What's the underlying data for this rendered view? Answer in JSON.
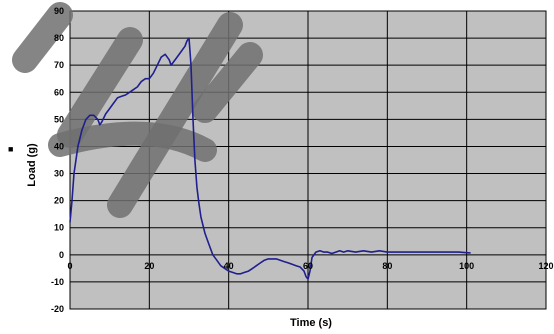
{
  "chart_data": {
    "type": "line",
    "xlabel": "Time (s)",
    "ylabel": "Load (g)",
    "legend_marker": "■",
    "xlim": [
      0,
      120
    ],
    "ylim": [
      -20,
      90
    ],
    "x_ticks": [
      0,
      20,
      40,
      60,
      80,
      100,
      120
    ],
    "y_ticks": [
      -20,
      -10,
      0,
      10,
      20,
      30,
      40,
      50,
      60,
      70,
      80,
      90
    ],
    "x_tick_labels": [
      "0",
      "20",
      "40",
      "60",
      "80",
      "100",
      "120"
    ],
    "y_tick_labels": [
      "-20",
      "-10",
      "0",
      "10",
      "20",
      "30",
      "40",
      "50",
      "60",
      "70",
      "80",
      "90"
    ],
    "grid": true,
    "legend": "none",
    "colors": {
      "plot_area": "#c0c0c0",
      "grid": "#000000",
      "series": "#1f1f8f",
      "watermark": "#707070"
    },
    "series": [
      {
        "x": [
          0,
          0.5,
          1,
          2,
          3,
          4,
          5,
          6,
          7,
          7.5,
          8,
          9,
          10,
          11,
          12,
          13,
          14,
          15,
          16,
          17,
          18,
          19,
          20,
          21,
          22,
          23,
          24,
          25,
          25.5,
          26,
          27,
          28,
          29,
          29.5,
          30,
          30.5,
          31,
          31.5,
          32,
          32.5,
          33,
          34,
          35,
          36,
          37,
          38,
          39,
          40,
          41,
          42,
          43,
          44,
          45,
          46,
          47,
          48,
          49,
          50,
          51,
          52,
          53,
          54,
          55,
          56,
          57,
          58,
          59,
          59.5,
          60,
          60.5,
          61,
          62,
          63,
          64,
          65,
          66,
          67,
          68,
          69,
          70,
          72,
          74,
          76,
          78,
          80,
          82,
          84,
          86,
          88,
          90,
          92,
          94,
          96,
          98,
          100,
          101
        ],
        "y": [
          12,
          20,
          30,
          40,
          46,
          50,
          51.5,
          51.5,
          50,
          48,
          49,
          52,
          54,
          56,
          58,
          58.5,
          59,
          60,
          61,
          62,
          64,
          65,
          65,
          67,
          70,
          73,
          74,
          72,
          70,
          71,
          73,
          75,
          77,
          79,
          80,
          70,
          50,
          35,
          25,
          19,
          14,
          8,
          4,
          0,
          -2,
          -4,
          -5,
          -6,
          -6.5,
          -7,
          -7,
          -6.5,
          -6,
          -5,
          -4,
          -3,
          -2,
          -1.5,
          -1.5,
          -1.5,
          -2,
          -2.5,
          -3,
          -3.5,
          -4,
          -4.5,
          -6,
          -8,
          -9,
          -6,
          -1,
          1,
          1.5,
          1,
          1,
          0.5,
          1,
          1.5,
          1,
          1.5,
          1,
          1.5,
          1,
          1.5,
          1,
          1,
          1,
          1,
          1,
          1,
          1,
          1,
          1,
          1,
          0.8,
          0.7
        ]
      }
    ]
  }
}
